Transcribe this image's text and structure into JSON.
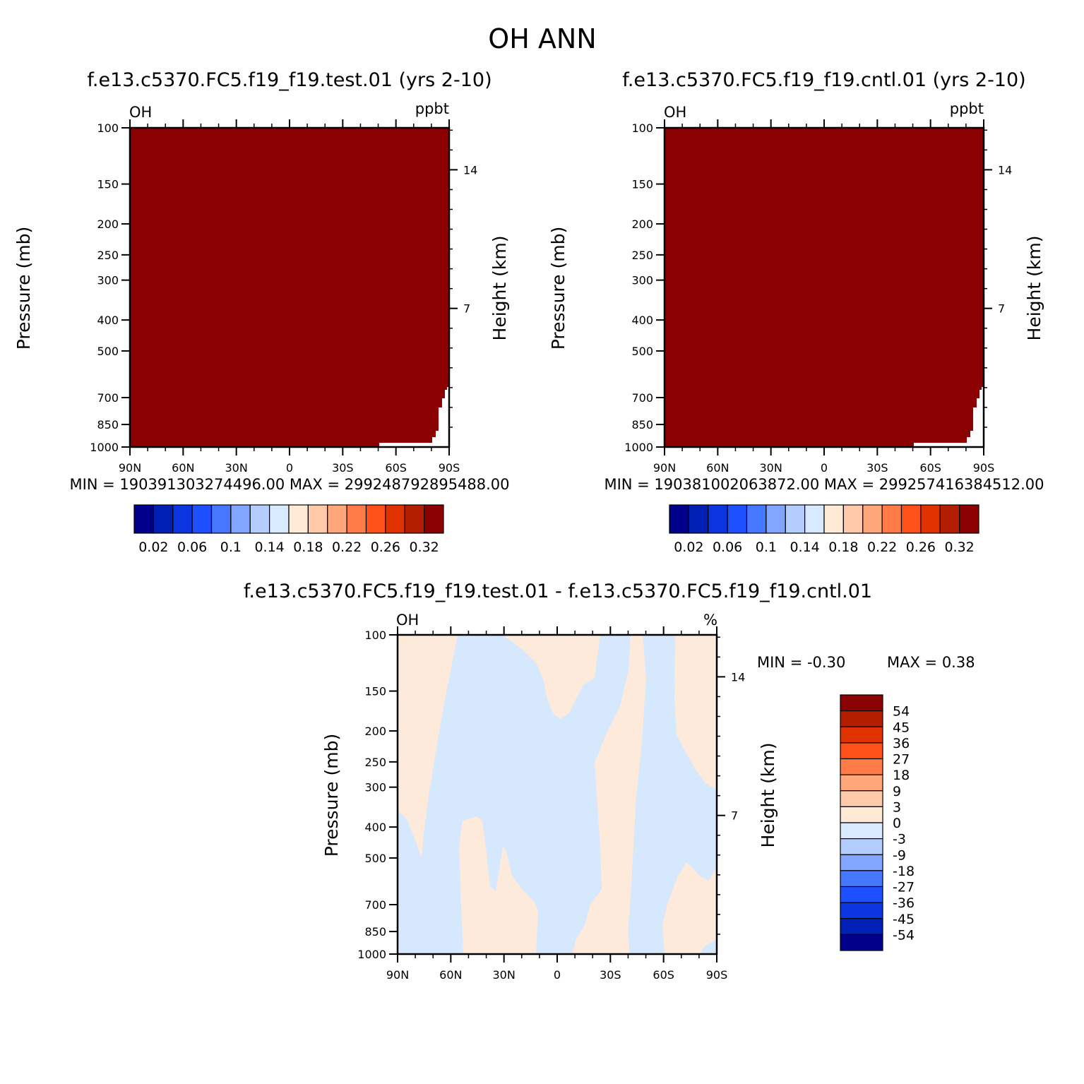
{
  "figure_title": "OH ANN",
  "colors": {
    "panel_fill": "#8b0000",
    "diff_positive": "#feeadb",
    "diff_negative": "#d5e8fd"
  },
  "abs_palette": [
    "#00008b",
    "#0020b4",
    "#0a35e1",
    "#1e50ff",
    "#4678ff",
    "#82a5ff",
    "#b4cdff",
    "#d8eaff",
    "#ffead6",
    "#ffc9aa",
    "#ffa67b",
    "#ff7b48",
    "#ff5019",
    "#e03200",
    "#b41e00",
    "#8b0000"
  ],
  "panels": [
    {
      "id": "test",
      "title": "f.e13.c5370.FC5.f19_f19.test.01 (yrs 2-10)",
      "var_label": "OH",
      "units": "ppbt",
      "ylabel": "Pressure (mb)",
      "right_label": "Height (km)",
      "minmax": "MIN = 190391303274496.00   MAX = 299248792895488.00",
      "colorbar_labels": [
        "0.02",
        "0.06",
        "0.1",
        "0.14",
        "0.18",
        "0.22",
        "0.26",
        "0.32"
      ]
    },
    {
      "id": "cntl",
      "title": "f.e13.c5370.FC5.f19_f19.cntl.01 (yrs 2-10)",
      "var_label": "OH",
      "units": "ppbt",
      "ylabel": "Pressure (mb)",
      "right_label": "Height (km)",
      "minmax": "MIN = 190381002063872.00   MAX = 299257416384512.00",
      "colorbar_labels": [
        "0.02",
        "0.06",
        "0.1",
        "0.14",
        "0.18",
        "0.22",
        "0.26",
        "0.32"
      ]
    },
    {
      "id": "diff",
      "title": "f.e13.c5370.FC5.f19_f19.test.01 - f.e13.c5370.FC5.f19_f19.cntl.01",
      "var_label": "OH",
      "units": "%",
      "ylabel": "Pressure (mb)",
      "right_label": "Height (km)",
      "min_text": "MIN =   -0.30",
      "max_text": "MAX =    0.38",
      "colorbar_labels": [
        "54",
        "45",
        "36",
        "27",
        "18",
        "9",
        "3",
        "0",
        "-3",
        "-9",
        "-18",
        "-27",
        "-36",
        "-45",
        "-54"
      ],
      "colorbar_colors": [
        "#8b0000",
        "#b41e00",
        "#e03200",
        "#ff5019",
        "#ff7b48",
        "#ffa67b",
        "#ffc9aa",
        "#ffead6",
        "#d8eaff",
        "#b4cdff",
        "#82a5ff",
        "#4678ff",
        "#1e50ff",
        "#0a35e1",
        "#0020b4",
        "#00008b"
      ]
    }
  ],
  "chart_data": {
    "type": "heatmap",
    "title": "OH ANN",
    "x_ticks": [
      "90N",
      "60N",
      "30N",
      "0",
      "30S",
      "60S",
      "90S"
    ],
    "x_tick_values": [
      90,
      60,
      30,
      0,
      -30,
      -60,
      -90
    ],
    "y_ticks": [
      "100",
      "150",
      "200",
      "250",
      "300",
      "400",
      "500",
      "700",
      "850",
      "1000"
    ],
    "y_tick_values": [
      100,
      150,
      200,
      250,
      300,
      400,
      500,
      700,
      850,
      1000
    ],
    "right_ticks": [
      "14",
      "7"
    ],
    "right_tick_values": [
      14,
      7
    ],
    "xlim": [
      90,
      -90
    ],
    "ylim": [
      1000,
      100
    ],
    "yscale": "log",
    "test_field": "uniformly at or above 0.32 (top colour) everywhere except a blank corner near 90S below ~680 mb",
    "cntl_field": "uniformly at or above 0.32 (top colour) everywhere except a blank corner near 90S below ~680 mb",
    "diff_regions": {
      "positive_0_to_3": [
        {
          "lat_lon": "90N-55N",
          "desc": "upper band from 100 mb down to ~350-500 mb"
        },
        {
          "lat_lon": "52N-13N",
          "desc": "lower tongue from surface up to ~390 mb"
        },
        {
          "lat_lon": "20N-16S",
          "desc": "upper tongue from 100 mb down to ~190 mb"
        },
        {
          "lat_lon": "3S-43S",
          "desc": "column from surface up to 100 mb"
        },
        {
          "lat_lon": "70S-90S",
          "desc": "upper right from 100 mb down to ~330 mb"
        },
        {
          "lat_lon": "60S-90S",
          "desc": "lower right from surface up to ~520 mb"
        }
      ],
      "negative_0_to_-3": "elsewhere"
    }
  }
}
